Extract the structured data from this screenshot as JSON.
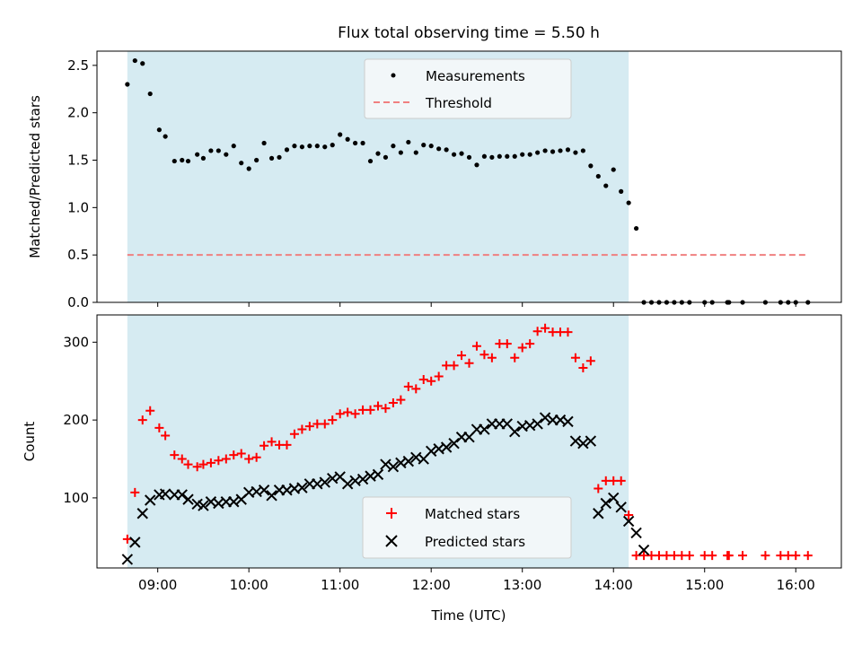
{
  "title": "Flux total observing time = 5.50 h",
  "colors": {
    "shade": "#add8e6",
    "threshold": "#f08080",
    "matched": "#ff0000",
    "predicted": "#000000",
    "measurement": "#000000"
  },
  "chart_data": [
    {
      "type": "scatter",
      "ylabel": "Matched/Predicted stars",
      "xlim": [
        "08:20",
        "16:30"
      ],
      "ylim": [
        0,
        2.65
      ],
      "yticks": [
        "0.0",
        "0.5",
        "1.0",
        "1.5",
        "2.0",
        "2.5"
      ],
      "shaded_interval": [
        "08:40",
        "14:10"
      ],
      "legend": {
        "position": "top-center",
        "entries": [
          "Measurements",
          "Threshold"
        ]
      },
      "threshold": 0.5,
      "series": [
        {
          "name": "Measurements",
          "points": [
            [
              "08:40",
              2.3
            ],
            [
              "08:45",
              2.55
            ],
            [
              "08:50",
              2.52
            ],
            [
              "08:55",
              2.2
            ],
            [
              "09:01",
              1.82
            ],
            [
              "09:05",
              1.75
            ],
            [
              "09:11",
              1.49
            ],
            [
              "09:16",
              1.5
            ],
            [
              "09:20",
              1.49
            ],
            [
              "09:26",
              1.56
            ],
            [
              "09:30",
              1.52
            ],
            [
              "09:35",
              1.6
            ],
            [
              "09:40",
              1.6
            ],
            [
              "09:45",
              1.56
            ],
            [
              "09:50",
              1.65
            ],
            [
              "09:55",
              1.47
            ],
            [
              "10:00",
              1.41
            ],
            [
              "10:05",
              1.5
            ],
            [
              "10:10",
              1.68
            ],
            [
              "10:15",
              1.52
            ],
            [
              "10:20",
              1.53
            ],
            [
              "10:25",
              1.61
            ],
            [
              "10:30",
              1.65
            ],
            [
              "10:35",
              1.64
            ],
            [
              "10:40",
              1.65
            ],
            [
              "10:45",
              1.65
            ],
            [
              "10:50",
              1.64
            ],
            [
              "10:55",
              1.66
            ],
            [
              "11:00",
              1.77
            ],
            [
              "11:05",
              1.72
            ],
            [
              "11:10",
              1.68
            ],
            [
              "11:15",
              1.68
            ],
            [
              "11:20",
              1.49
            ],
            [
              "11:25",
              1.57
            ],
            [
              "11:30",
              1.53
            ],
            [
              "11:35",
              1.65
            ],
            [
              "11:40",
              1.58
            ],
            [
              "11:45",
              1.69
            ],
            [
              "11:50",
              1.58
            ],
            [
              "11:55",
              1.66
            ],
            [
              "12:00",
              1.65
            ],
            [
              "12:05",
              1.62
            ],
            [
              "12:10",
              1.61
            ],
            [
              "12:15",
              1.56
            ],
            [
              "12:20",
              1.57
            ],
            [
              "12:25",
              1.53
            ],
            [
              "12:30",
              1.45
            ],
            [
              "12:35",
              1.54
            ],
            [
              "12:40",
              1.53
            ],
            [
              "12:45",
              1.54
            ],
            [
              "12:50",
              1.54
            ],
            [
              "12:55",
              1.54
            ],
            [
              "13:00",
              1.56
            ],
            [
              "13:05",
              1.56
            ],
            [
              "13:10",
              1.58
            ],
            [
              "13:15",
              1.6
            ],
            [
              "13:20",
              1.59
            ],
            [
              "13:25",
              1.6
            ],
            [
              "13:30",
              1.61
            ],
            [
              "13:35",
              1.58
            ],
            [
              "13:40",
              1.6
            ],
            [
              "13:45",
              1.44
            ],
            [
              "13:50",
              1.33
            ],
            [
              "13:55",
              1.23
            ],
            [
              "14:00",
              1.4
            ],
            [
              "14:05",
              1.17
            ],
            [
              "14:10",
              1.05
            ],
            [
              "14:15",
              0.78
            ],
            [
              "14:20",
              0.0
            ],
            [
              "14:25",
              0.0
            ],
            [
              "14:30",
              0.0
            ],
            [
              "14:35",
              0.0
            ],
            [
              "14:40",
              0.0
            ],
            [
              "14:45",
              0.0
            ],
            [
              "14:50",
              0.0
            ],
            [
              "15:00",
              0.0
            ],
            [
              "15:05",
              0.0
            ],
            [
              "15:15",
              0.0
            ],
            [
              "15:16",
              0.0
            ],
            [
              "15:25",
              0.0
            ],
            [
              "15:40",
              0.0
            ],
            [
              "15:50",
              0.0
            ],
            [
              "15:55",
              0.0
            ],
            [
              "16:00",
              0.0
            ],
            [
              "16:08",
              0.0
            ]
          ]
        },
        {
          "name": "Threshold",
          "points": [
            [
              "08:40",
              0.5
            ],
            [
              "16:08",
              0.5
            ]
          ]
        }
      ]
    },
    {
      "type": "scatter",
      "xlabel": "Time (UTC)",
      "ylabel": "Count",
      "xlim": [
        "08:20",
        "16:30"
      ],
      "ylim": [
        10,
        335
      ],
      "yticks": [
        "100",
        "200",
        "300"
      ],
      "xticks": [
        "09:00",
        "10:00",
        "11:00",
        "12:00",
        "13:00",
        "14:00",
        "15:00",
        "16:00"
      ],
      "shaded_interval": [
        "08:40",
        "14:10"
      ],
      "legend": {
        "position": "bottom-center",
        "entries": [
          "Matched stars",
          "Predicted stars"
        ]
      },
      "series": [
        {
          "name": "Matched stars",
          "points": [
            [
              "08:40",
              47
            ],
            [
              "08:45",
              107
            ],
            [
              "08:50",
              200
            ],
            [
              "08:55",
              212
            ],
            [
              "09:01",
              190
            ],
            [
              "09:05",
              180
            ],
            [
              "09:11",
              155
            ],
            [
              "09:16",
              150
            ],
            [
              "09:20",
              143
            ],
            [
              "09:26",
              140
            ],
            [
              "09:30",
              143
            ],
            [
              "09:35",
              145
            ],
            [
              "09:40",
              148
            ],
            [
              "09:45",
              150
            ],
            [
              "09:50",
              155
            ],
            [
              "09:55",
              157
            ],
            [
              "10:00",
              150
            ],
            [
              "10:05",
              152
            ],
            [
              "10:10",
              167
            ],
            [
              "10:15",
              172
            ],
            [
              "10:20",
              168
            ],
            [
              "10:25",
              168
            ],
            [
              "10:30",
              182
            ],
            [
              "10:35",
              188
            ],
            [
              "10:40",
              192
            ],
            [
              "10:45",
              195
            ],
            [
              "10:50",
              195
            ],
            [
              "10:55",
              200
            ],
            [
              "11:00",
              208
            ],
            [
              "11:05",
              210
            ],
            [
              "11:10",
              208
            ],
            [
              "11:15",
              213
            ],
            [
              "11:20",
              213
            ],
            [
              "11:25",
              218
            ],
            [
              "11:30",
              215
            ],
            [
              "11:35",
              222
            ],
            [
              "11:40",
              226
            ],
            [
              "11:45",
              243
            ],
            [
              "11:50",
              240
            ],
            [
              "11:55",
              252
            ],
            [
              "12:00",
              250
            ],
            [
              "12:05",
              256
            ],
            [
              "12:10",
              270
            ],
            [
              "12:15",
              270
            ],
            [
              "12:20",
              283
            ],
            [
              "12:25",
              273
            ],
            [
              "12:30",
              295
            ],
            [
              "12:35",
              284
            ],
            [
              "12:40",
              280
            ],
            [
              "12:45",
              298
            ],
            [
              "12:50",
              298
            ],
            [
              "12:55",
              280
            ],
            [
              "13:00",
              293
            ],
            [
              "13:05",
              298
            ],
            [
              "13:10",
              314
            ],
            [
              "13:15",
              318
            ],
            [
              "13:20",
              313
            ],
            [
              "13:25",
              313
            ],
            [
              "13:30",
              313
            ],
            [
              "13:35",
              280
            ],
            [
              "13:40",
              267
            ],
            [
              "13:45",
              276
            ],
            [
              "13:50",
              112
            ],
            [
              "13:55",
              122
            ],
            [
              "14:00",
              122
            ],
            [
              "14:05",
              122
            ],
            [
              "14:10",
              78
            ],
            [
              "14:15",
              26
            ],
            [
              "14:20",
              26
            ],
            [
              "14:25",
              26
            ],
            [
              "14:30",
              26
            ],
            [
              "14:35",
              26
            ],
            [
              "14:40",
              26
            ],
            [
              "14:45",
              26
            ],
            [
              "14:50",
              26
            ],
            [
              "15:00",
              26
            ],
            [
              "15:05",
              26
            ],
            [
              "15:15",
              26
            ],
            [
              "15:16",
              26
            ],
            [
              "15:25",
              26
            ],
            [
              "15:40",
              26
            ],
            [
              "15:50",
              26
            ],
            [
              "15:55",
              26
            ],
            [
              "16:00",
              26
            ],
            [
              "16:08",
              26
            ]
          ]
        },
        {
          "name": "Predicted stars",
          "points": [
            [
              "08:40",
              21
            ],
            [
              "08:45",
              43
            ],
            [
              "08:50",
              80
            ],
            [
              "08:55",
              97
            ],
            [
              "09:01",
              104
            ],
            [
              "09:05",
              105
            ],
            [
              "09:11",
              104
            ],
            [
              "09:16",
              104
            ],
            [
              "09:20",
              98
            ],
            [
              "09:26",
              92
            ],
            [
              "09:30",
              90
            ],
            [
              "09:35",
              95
            ],
            [
              "09:40",
              93
            ],
            [
              "09:45",
              95
            ],
            [
              "09:50",
              95
            ],
            [
              "09:55",
              98
            ],
            [
              "10:00",
              107
            ],
            [
              "10:05",
              108
            ],
            [
              "10:10",
              110
            ],
            [
              "10:15",
              103
            ],
            [
              "10:20",
              110
            ],
            [
              "10:25",
              110
            ],
            [
              "10:30",
              112
            ],
            [
              "10:35",
              113
            ],
            [
              "10:40",
              118
            ],
            [
              "10:45",
              118
            ],
            [
              "10:50",
              120
            ],
            [
              "10:55",
              125
            ],
            [
              "11:00",
              127
            ],
            [
              "11:05",
              118
            ],
            [
              "11:10",
              122
            ],
            [
              "11:15",
              124
            ],
            [
              "11:20",
              128
            ],
            [
              "11:25",
              130
            ],
            [
              "11:30",
              143
            ],
            [
              "11:35",
              140
            ],
            [
              "11:40",
              145
            ],
            [
              "11:45",
              147
            ],
            [
              "11:50",
              152
            ],
            [
              "11:55",
              150
            ],
            [
              "12:00",
              160
            ],
            [
              "12:05",
              163
            ],
            [
              "12:10",
              165
            ],
            [
              "12:15",
              170
            ],
            [
              "12:20",
              178
            ],
            [
              "12:25",
              178
            ],
            [
              "12:30",
              188
            ],
            [
              "12:35",
              188
            ],
            [
              "12:40",
              195
            ],
            [
              "12:45",
              195
            ],
            [
              "12:50",
              195
            ],
            [
              "12:55",
              185
            ],
            [
              "13:00",
              192
            ],
            [
              "13:05",
              193
            ],
            [
              "13:10",
              195
            ],
            [
              "13:15",
              203
            ],
            [
              "13:20",
              200
            ],
            [
              "13:25",
              200
            ],
            [
              "13:30",
              198
            ],
            [
              "13:35",
              173
            ],
            [
              "13:40",
              170
            ],
            [
              "13:45",
              173
            ],
            [
              "13:50",
              80
            ],
            [
              "13:55",
              93
            ],
            [
              "14:00",
              100
            ],
            [
              "14:05",
              88
            ],
            [
              "14:10",
              70
            ],
            [
              "14:15",
              55
            ],
            [
              "14:20",
              33
            ]
          ]
        }
      ]
    }
  ]
}
